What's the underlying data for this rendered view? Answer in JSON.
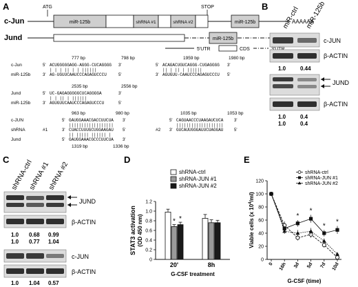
{
  "panels": {
    "A": {
      "label": "A",
      "gene1": "c-Jun",
      "gene2": "Jund",
      "atg": "ATG",
      "stop": "STOP",
      "polya": "AAAAAA",
      "box_mir125b": "miR-125b",
      "box_shrna1": "shRNA #1",
      "box_shrna2": "shRNA #2",
      "utr5": "5'UTR",
      "cds": "CDS",
      "utr3": "3'UTR",
      "align_cjun_mir": {
        "left": {
          "pos_start": "777 bp",
          "pos_end": "798 bp",
          "top_label": "c-Jun",
          "top_seq": "ACUGGGGGAGG-AGGG-CUCAGGGG",
          "bars": "  | |  |  ||  | |  ||||||",
          "bottom_label": "miR-125b",
          "bottom_seq": "AG-UGUUCAAUCCCAGAGUCCCU"
        },
        "right": {
          "pos_start": "1959 bp",
          "pos_end": "1980 bp",
          "top_seq": "ACAGACUGUCAGGG-CUGAGGGG",
          "bars": "  ||  |  ||  |  ||||||",
          "bottom_seq": "AGUGUU-CAAUCCCAGAGUCCCU"
        }
      },
      "align_jund_mir": {
        "pos_start": "2535 bp",
        "pos_end": "2556 bp",
        "top_label": "Jund",
        "top_seq": "UC-GAGAGGGGGCUCAGGGGA",
        "bars": "  |  |   ||  |  ||||||",
        "bottom_label": "miR-125b",
        "bottom_seq": "AGUGUUCAAUCCCAGAGUCCCU"
      },
      "align_shrna": {
        "left": {
          "pos_start": "963 bp",
          "pos_end": "980 bp",
          "top_label": "c-JUN",
          "top_seq": "GAUGGAAACGACCUUCUA",
          "bars1": "||||||||||||||||||",
          "mid_label": "shRNA",
          "mid_num": "#1",
          "mid_seq": "CUACCUUUGCUGGAAGAU",
          "bars2": "|| |||||  |||||| |",
          "bottom_label": "Jund",
          "bottom_seq": "GAUGGAAACGCCCUUCUA",
          "pos2_start": "1319 bp",
          "pos2_end": "1336 bp"
        },
        "right": {
          "pos_start": "1035 bp",
          "pos_end": "1053 bp",
          "top_seq": "CAGUAACCCUAAGAUCUCA",
          "bars1": "|||||||||||||||||||",
          "mid_num": "#2",
          "mid_seq": "GUCAUUGGGAUUCUAGGAU"
        }
      }
    },
    "B": {
      "label": "B",
      "lanes": [
        "miR-ctrl",
        "miR-125b"
      ],
      "blot1": {
        "label": "c-JUN",
        "values": [
          "1.0",
          "0.44"
        ]
      },
      "actin1": "β-ACTIN",
      "blot2": {
        "label": "JUND",
        "values_row1": [
          "1.0",
          "0.4"
        ],
        "values_row2": [
          "1.0",
          "0.4"
        ]
      },
      "actin2": "β-ACTIN"
    },
    "C": {
      "label": "C",
      "lanes": [
        "shRNA-ctrl",
        "shRNA #1",
        "shRNA #2"
      ],
      "blot1": {
        "label": "JUND",
        "values_row1": [
          "1.0",
          "0.68",
          "0.99"
        ],
        "values_row2": [
          "1.0",
          "0.77",
          "1.04"
        ]
      },
      "actin1": "β-ACTIN",
      "blot2": {
        "label": "c-JUN",
        "values": [
          "1.0",
          "1.04",
          "0.57"
        ]
      },
      "actin2": "β-ACTIN"
    },
    "D": {
      "label": "D"
    },
    "E": {
      "label": "E"
    }
  },
  "chart_data": [
    {
      "type": "bar",
      "panel": "D",
      "categories": [
        "20'",
        "8h"
      ],
      "xlabel": "G-CSF treatment",
      "ylabel": "STAT3 activation",
      "ylabel_sub": "(OD 450 nm)",
      "ylim": [
        0,
        1.2
      ],
      "yticks": [
        "0",
        "0.2",
        "0.4",
        "0.6",
        "0.8",
        "1.0",
        "1.2"
      ],
      "legend": "top-right",
      "series": [
        {
          "name": "shRNA-ctrl",
          "values": [
            0.98,
            0.85
          ],
          "errors": [
            0.06,
            0.08
          ],
          "color": "#ffffff"
        },
        {
          "name": "shRNA-JUN #1",
          "values": [
            0.68,
            0.76
          ],
          "errors": [
            0.04,
            0.06
          ],
          "color": "#9a9a9a"
        },
        {
          "name": "shRNA-JUN #2",
          "values": [
            0.72,
            0.76
          ],
          "errors": [
            0.05,
            0.05
          ],
          "color": "#1a1a1a"
        }
      ],
      "annotations": [
        {
          "category": 0,
          "series": 1,
          "text": "*"
        },
        {
          "category": 0,
          "series": 2,
          "text": "*"
        }
      ]
    },
    {
      "type": "line",
      "panel": "E",
      "categories": [
        "0",
        "16h",
        "3d",
        "5d",
        "7d",
        "10d"
      ],
      "xlabel": "G-CSF (time)",
      "ylabel": "Viable cells (x 10",
      "ylabel_sup": "4",
      "ylabel_end": "/ml)",
      "ylim": [
        0,
        120
      ],
      "yticks": [
        "0",
        "20",
        "40",
        "60",
        "80",
        "100",
        "120"
      ],
      "legend": "top-right",
      "series": [
        {
          "name": "shRNA-ctrl",
          "values": [
            100,
            52,
            33,
            38,
            22,
            3
          ],
          "errors": [
            2,
            6,
            4,
            5,
            4,
            2
          ],
          "marker": "circle-open"
        },
        {
          "name": "shRNA-JUN #1",
          "values": [
            100,
            47,
            55,
            62,
            40,
            45
          ],
          "errors": [
            2,
            4,
            5,
            6,
            5,
            6
          ],
          "marker": "square"
        },
        {
          "name": "shRNA-JUN #2",
          "values": [
            100,
            43,
            40,
            43,
            28,
            8
          ],
          "errors": [
            2,
            4,
            5,
            5,
            4,
            3
          ],
          "marker": "triangle"
        }
      ],
      "annotations": [
        {
          "category": 2,
          "text": "*"
        },
        {
          "category": 3,
          "text": "*"
        },
        {
          "category": 4,
          "text": "*"
        },
        {
          "category": 5,
          "text": "*"
        }
      ]
    }
  ],
  "colors": {
    "box_fill": "#cfcfcf",
    "blot_bg": "#dcdcdc",
    "band_dark": "#3a3a3a",
    "axis": "#111111"
  }
}
